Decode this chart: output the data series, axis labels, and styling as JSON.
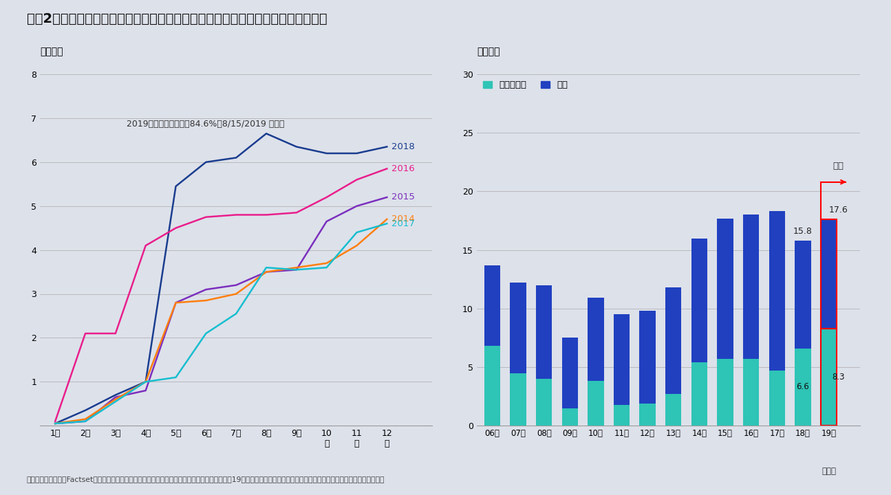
{
  "title": "図表2：上場企業の自社株取得枠上限決議枠（左図）と株主還元額の推移（右図）",
  "background_color": "#dde1ea",
  "left_ylabel": "（兆円）",
  "right_ylabel": "（兆円）",
  "annotation_text": "2019暦年（前年比）：84.6%（8/15/2019 時点）",
  "source_text": "出所：会社データ、Factset、日経バリューサーチ、ゴールドマン・サックス証券。株主還元額の19年予想は、ゴールドマン・サックス証券グローバル投資調査部による。",
  "left_ylim": [
    0,
    8
  ],
  "left_yticks": [
    0,
    1,
    2,
    3,
    4,
    5,
    6,
    7,
    8
  ],
  "right_ylim": [
    0,
    30
  ],
  "right_yticks": [
    0,
    5,
    10,
    15,
    20,
    25,
    30
  ],
  "month_ticks": [
    1,
    2,
    3,
    4,
    5,
    6,
    7,
    8,
    9,
    10,
    11,
    12
  ],
  "month_labels": [
    "1月",
    "2月",
    "3月",
    "4月",
    "5月",
    "6月",
    "7月",
    "8月",
    "9月",
    "10\n月",
    "11\n月",
    "12\n月"
  ],
  "lines": {
    "2018": {
      "color": "#1a3d8f",
      "data": [
        0.05,
        0.35,
        0.7,
        1.0,
        5.45,
        6.0,
        6.1,
        6.65,
        6.35,
        6.2,
        6.2,
        6.35
      ]
    },
    "2016": {
      "color": "#e91e8c",
      "data": [
        0.1,
        2.1,
        2.1,
        4.1,
        4.5,
        4.75,
        4.8,
        4.8,
        4.85,
        5.2,
        5.6,
        5.85
      ]
    },
    "2015": {
      "color": "#7b2fbe",
      "data": [
        0.05,
        0.1,
        0.65,
        0.8,
        2.8,
        3.1,
        3.2,
        3.5,
        3.55,
        4.65,
        5.0,
        5.2
      ]
    },
    "2014": {
      "color": "#ff7f0e",
      "data": [
        0.05,
        0.15,
        0.6,
        1.0,
        2.8,
        2.85,
        3.0,
        3.5,
        3.6,
        3.7,
        4.1,
        4.7
      ]
    },
    "2017": {
      "color": "#17becf",
      "data": [
        0.05,
        0.1,
        0.55,
        1.0,
        1.1,
        2.1,
        2.55,
        3.6,
        3.55,
        3.6,
        4.4,
        4.6
      ]
    }
  },
  "line_labels_order": [
    "2018",
    "2016",
    "2015",
    "2014",
    "2017"
  ],
  "bar_years": [
    "06年",
    "07年",
    "08年",
    "09年",
    "10年",
    "11年",
    "12年",
    "13年",
    "14年",
    "15年",
    "16年",
    "17年",
    "18年",
    "19年"
  ],
  "buyback": [
    6.8,
    4.5,
    4.0,
    1.5,
    3.8,
    1.8,
    1.9,
    2.7,
    5.4,
    5.7,
    5.7,
    4.7,
    6.6,
    8.3
  ],
  "dividend": [
    6.9,
    7.7,
    8.0,
    6.0,
    7.1,
    7.7,
    7.9,
    9.1,
    10.6,
    12.0,
    12.3,
    13.6,
    9.2,
    9.3
  ],
  "buyback_color": "#2ec4b6",
  "dividend_color": "#2040c0",
  "legend_label_buyback": "自社株取得",
  "legend_label_dividend": "配当",
  "yoso_label": "予想",
  "total_label_18": "15.8",
  "total_label_19": "17.6",
  "buyback_label_18": "6.6",
  "buyback_label_19": "8.3"
}
